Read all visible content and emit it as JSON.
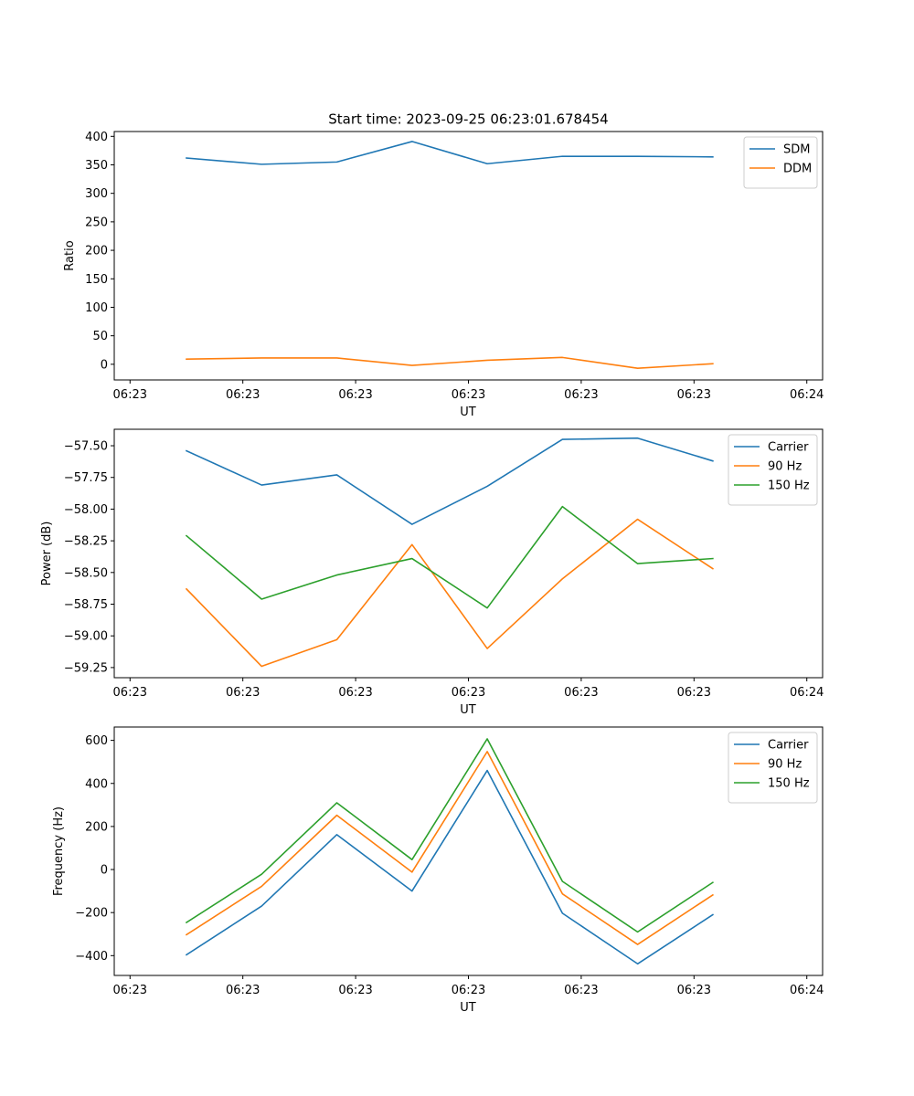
{
  "figure": {
    "title": "Start time: 2023-09-25 06:23:01.678454"
  },
  "chart_data": [
    {
      "type": "line",
      "title": "Start time: 2023-09-25 06:23:01.678454",
      "xlabel": "UT",
      "ylabel": "Ratio",
      "x": [
        1,
        2,
        3,
        4,
        5,
        6,
        7,
        8
      ],
      "xlim": [
        0.04,
        9.46
      ],
      "x_ticks": [
        0.25,
        1.75,
        3.25,
        4.75,
        6.25,
        7.75,
        9.25
      ],
      "x_tick_labels": [
        "06:23",
        "06:23",
        "06:23",
        "06:23",
        "06:23",
        "06:23",
        "06:24"
      ],
      "ylim": [
        -27.5,
        408.5
      ],
      "y_ticks": [
        0,
        50,
        100,
        150,
        200,
        250,
        300,
        350,
        400
      ],
      "y_tick_labels": [
        "0",
        "50",
        "100",
        "150",
        "200",
        "250",
        "300",
        "350",
        "400"
      ],
      "legend_position": "top-right",
      "series": [
        {
          "name": "SDM",
          "color": "#1f77b4",
          "values": [
            362,
            351,
            355,
            391,
            352,
            365,
            365,
            364
          ]
        },
        {
          "name": "DDM",
          "color": "#ff7f0e",
          "values": [
            9,
            11,
            11,
            -2,
            7,
            12,
            -7,
            1
          ]
        }
      ]
    },
    {
      "type": "line",
      "title": "",
      "xlabel": "UT",
      "ylabel": "Power (dB)",
      "x": [
        1,
        2,
        3,
        4,
        5,
        6,
        7,
        8
      ],
      "xlim": [
        0.04,
        9.46
      ],
      "x_ticks": [
        0.25,
        1.75,
        3.25,
        4.75,
        6.25,
        7.75,
        9.25
      ],
      "x_tick_labels": [
        "06:23",
        "06:23",
        "06:23",
        "06:23",
        "06:23",
        "06:23",
        "06:24"
      ],
      "ylim": [
        -59.33,
        -57.37
      ],
      "y_ticks": [
        -59.25,
        -59.0,
        -58.75,
        -58.5,
        -58.25,
        -58.0,
        -57.75,
        -57.5
      ],
      "y_tick_labels": [
        "−59.25",
        "−59.00",
        "−58.75",
        "−58.50",
        "−58.25",
        "−58.00",
        "−57.75",
        "−57.50"
      ],
      "legend_position": "top-right",
      "series": [
        {
          "name": "Carrier",
          "color": "#1f77b4",
          "values": [
            -57.54,
            -57.81,
            -57.73,
            -58.12,
            -57.82,
            -57.45,
            -57.44,
            -57.62
          ]
        },
        {
          "name": "90 Hz",
          "color": "#ff7f0e",
          "values": [
            -58.63,
            -59.24,
            -59.03,
            -58.28,
            -59.1,
            -58.55,
            -58.08,
            -58.47
          ]
        },
        {
          "name": "150 Hz",
          "color": "#2ca02c",
          "values": [
            -58.21,
            -58.71,
            -58.52,
            -58.39,
            -58.78,
            -57.98,
            -58.43,
            -58.39
          ]
        }
      ]
    },
    {
      "type": "line",
      "title": "",
      "xlabel": "UT",
      "ylabel": "Frequency (Hz)",
      "x": [
        1,
        2,
        3,
        4,
        5,
        6,
        7,
        8
      ],
      "xlim": [
        0.04,
        9.46
      ],
      "x_ticks": [
        0.25,
        1.75,
        3.25,
        4.75,
        6.25,
        7.75,
        9.25
      ],
      "x_tick_labels": [
        "06:23",
        "06:23",
        "06:23",
        "06:23",
        "06:23",
        "06:23",
        "06:24"
      ],
      "ylim": [
        -492,
        662
      ],
      "y_ticks": [
        -400,
        -200,
        0,
        200,
        400,
        600
      ],
      "y_tick_labels": [
        "−400",
        "−200",
        "0",
        "200",
        "400",
        "600"
      ],
      "legend_position": "top-right",
      "series": [
        {
          "name": "Carrier",
          "color": "#1f77b4",
          "values": [
            -396,
            -170,
            162,
            -100,
            460,
            -203,
            -438,
            -210
          ]
        },
        {
          "name": "90 Hz",
          "color": "#ff7f0e",
          "values": [
            -303,
            -78,
            252,
            -12,
            548,
            -113,
            -348,
            -118
          ]
        },
        {
          "name": "150 Hz",
          "color": "#2ca02c",
          "values": [
            -246,
            -22,
            310,
            46,
            607,
            -55,
            -290,
            -60
          ]
        }
      ]
    }
  ]
}
